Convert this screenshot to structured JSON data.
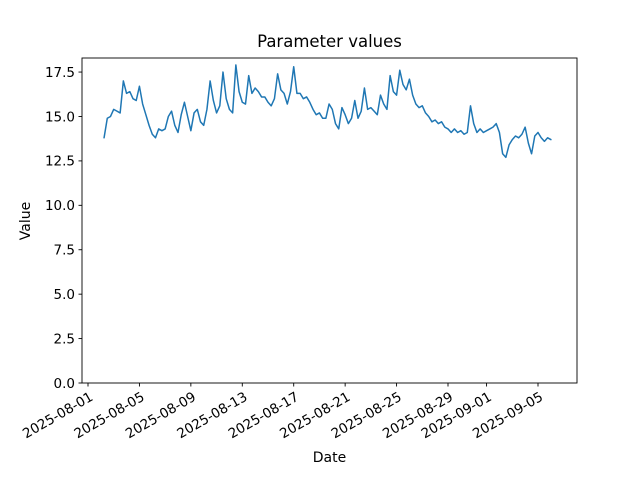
{
  "chart_data": {
    "type": "line",
    "title": "Parameter values",
    "xlabel": "Date",
    "ylabel": "Value",
    "grid": false,
    "legend": false,
    "line_color": "#1f77b4",
    "ylim": [
      0,
      18.3
    ],
    "y_ticks": [
      "0.0",
      "2.5",
      "5.0",
      "7.5",
      "10.0",
      "12.5",
      "15.0",
      "17.5"
    ],
    "x_epoch": "2025-08-01",
    "x_tick_rotation_deg": 30,
    "x_ticks": [
      "2025-08-01",
      "2025-08-05",
      "2025-08-09",
      "2025-08-13",
      "2025-08-17",
      "2025-08-21",
      "2025-08-25",
      "2025-08-29",
      "2025-09-01",
      "2025-09-05"
    ],
    "series": [
      {
        "start": "2025-08-02T06:00:00",
        "step_hours": 6,
        "values": [
          13.8,
          14.9,
          15.0,
          15.4,
          15.3,
          15.2,
          17.0,
          16.3,
          16.4,
          16.0,
          15.9,
          16.7,
          15.7,
          15.1,
          14.5,
          14.0,
          13.8,
          14.3,
          14.2,
          14.3,
          15.0,
          15.3,
          14.5,
          14.1,
          15.1,
          15.8,
          15.0,
          14.2,
          15.2,
          15.4,
          14.7,
          14.5,
          15.4,
          17.0,
          15.9,
          15.2,
          15.6,
          17.5,
          16.0,
          15.4,
          15.2,
          17.9,
          16.4,
          15.8,
          15.7,
          17.3,
          16.3,
          16.6,
          16.4,
          16.1,
          16.1,
          15.8,
          15.6,
          16.0,
          17.4,
          16.5,
          16.3,
          15.7,
          16.4,
          17.8,
          16.3,
          16.3,
          16.0,
          16.1,
          15.8,
          15.4,
          15.1,
          15.2,
          14.9,
          14.9,
          15.7,
          15.4,
          14.6,
          14.3,
          15.5,
          15.1,
          14.6,
          14.9,
          15.9,
          14.9,
          15.3,
          16.6,
          15.4,
          15.5,
          15.3,
          15.1,
          16.2,
          15.7,
          15.4,
          17.3,
          16.4,
          16.2,
          17.6,
          16.8,
          16.5,
          17.1,
          16.2,
          15.7,
          15.5,
          15.6,
          15.2,
          15.0,
          14.7,
          14.8,
          14.6,
          14.7,
          14.4,
          14.3,
          14.1,
          14.3,
          14.1,
          14.2,
          14.0,
          14.1,
          15.6,
          14.6,
          14.1,
          14.3,
          14.1,
          14.2,
          14.3,
          14.4,
          14.6,
          14.1,
          12.9,
          12.7,
          13.4,
          13.7,
          13.9,
          13.8,
          14.0,
          14.4,
          13.5,
          12.9,
          13.9,
          14.1,
          13.8,
          13.6,
          13.8,
          13.7
        ]
      }
    ]
  }
}
